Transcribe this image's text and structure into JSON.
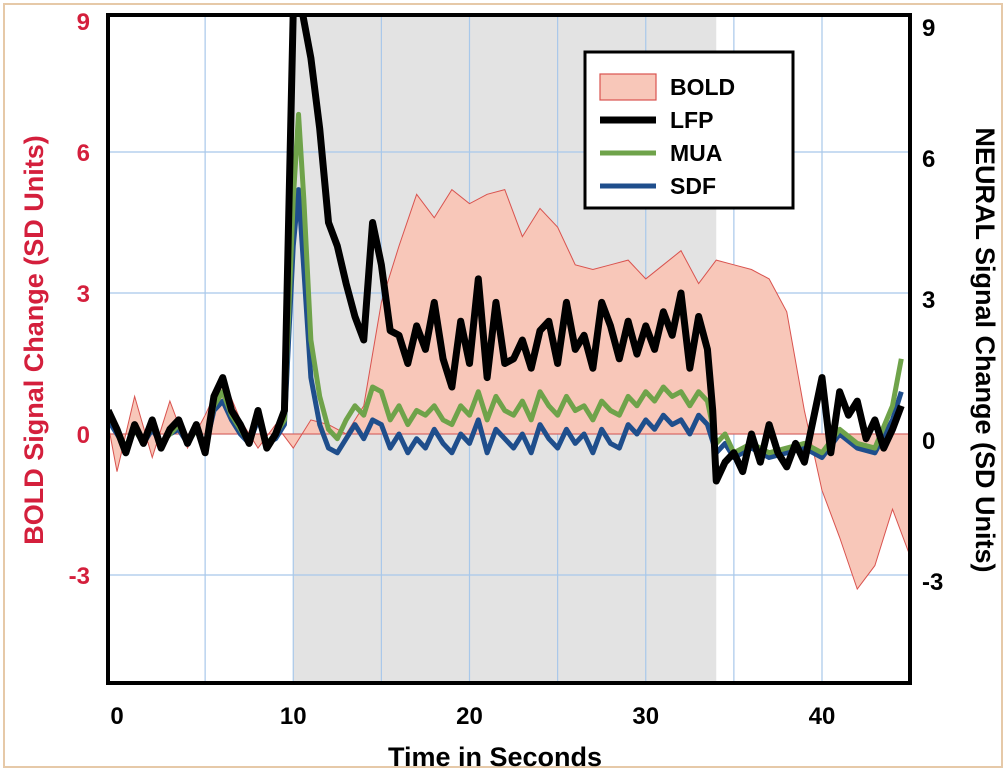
{
  "chart_data": {
    "type": "line",
    "title": "",
    "xlabel": "Time in Seconds",
    "ylabel_left": "BOLD Signal Change (SD Units)",
    "ylabel_right": "NEURAL Signal Change (SD Units)",
    "xlim": [
      -1,
      45
    ],
    "ylim": [
      -5.5,
      9
    ],
    "x_ticks": [
      0,
      10,
      20,
      30,
      40
    ],
    "x_tick_labels": [
      "0",
      "10",
      "20",
      "30",
      "40"
    ],
    "y_ticks": [
      -3,
      0,
      3,
      6,
      9
    ],
    "y_tick_labels_left": [
      "-3",
      "0",
      "3",
      "6",
      "9"
    ],
    "y_tick_labels_right": [
      "-3",
      "0",
      "3",
      "6",
      "9"
    ],
    "grid": true,
    "stimulus_period": [
      10,
      34
    ],
    "legend_position": "top-right",
    "colors": {
      "left_axis": "#d41f3c",
      "bold_fill": "#f8c7b9",
      "bold_edge": "#d9534f",
      "lfp": "#000000",
      "mua": "#6fa34a",
      "sdf": "#1f4e8c",
      "stim_shade": "#e3e3e3",
      "grid": "#a8c8ea"
    },
    "series": [
      {
        "name": "BOLD",
        "style": "filled-area",
        "x": [
          -0.5,
          0,
          1,
          2,
          3,
          4,
          5,
          6,
          7,
          8,
          9,
          10,
          11,
          12,
          13,
          14,
          15,
          16,
          17,
          18,
          19,
          20,
          21,
          22,
          23,
          24,
          25,
          26,
          27,
          28,
          29,
          30,
          31,
          32,
          33,
          34,
          35,
          36,
          37,
          38,
          39,
          40,
          41,
          42,
          43,
          44,
          45
        ],
        "y": [
          0.2,
          -0.8,
          0.8,
          -0.5,
          0.7,
          -0.3,
          0.4,
          1.2,
          0.3,
          -0.3,
          0.2,
          -0.3,
          0.3,
          0.2,
          0.0,
          0.6,
          2.8,
          4.0,
          5.1,
          4.6,
          5.2,
          4.9,
          5.1,
          5.2,
          4.2,
          4.8,
          4.4,
          3.6,
          3.5,
          3.6,
          3.7,
          3.3,
          3.6,
          3.9,
          3.2,
          3.7,
          3.6,
          3.5,
          3.3,
          2.6,
          0.5,
          -1.2,
          -2.2,
          -3.3,
          -2.8,
          -1.6,
          -2.6
        ]
      },
      {
        "name": "LFP",
        "x": [
          -0.5,
          0,
          0.5,
          1,
          1.5,
          2,
          2.5,
          3,
          3.5,
          4,
          4.5,
          5,
          5.5,
          6,
          6.5,
          7,
          7.5,
          8,
          8.5,
          9,
          9.5,
          10,
          10.2,
          10.5,
          11,
          11.5,
          12,
          12.5,
          13,
          13.5,
          14,
          14.5,
          15,
          15.5,
          16,
          16.5,
          17,
          17.5,
          18,
          18.5,
          19,
          19.5,
          20,
          20.5,
          21,
          21.5,
          22,
          22.5,
          23,
          23.5,
          24,
          24.5,
          25,
          25.5,
          26,
          26.5,
          27,
          27.5,
          28,
          28.5,
          29,
          29.5,
          30,
          30.5,
          31,
          31.5,
          32,
          32.5,
          33,
          33.5,
          33.8,
          34,
          34.5,
          35,
          35.5,
          36,
          36.5,
          37,
          37.5,
          38,
          38.5,
          39,
          39.5,
          40,
          40.5,
          41,
          41.5,
          42,
          42.5,
          43,
          43.5,
          44,
          44.5
        ],
        "y": [
          0.5,
          0.1,
          -0.4,
          0.2,
          -0.2,
          0.3,
          -0.3,
          0.1,
          0.3,
          -0.2,
          0.2,
          -0.4,
          0.8,
          1.2,
          0.5,
          0.2,
          -0.2,
          0.5,
          -0.3,
          0.0,
          0.5,
          9,
          9,
          9,
          8.0,
          6.5,
          4.5,
          4.0,
          3.2,
          2.5,
          2.0,
          4.5,
          3.6,
          2.2,
          2.1,
          1.5,
          2.3,
          1.8,
          2.8,
          1.6,
          1.0,
          2.4,
          1.5,
          3.3,
          1.2,
          2.8,
          1.5,
          1.6,
          2.0,
          1.4,
          2.2,
          2.4,
          1.5,
          2.8,
          1.8,
          2.1,
          1.4,
          2.8,
          2.3,
          1.6,
          2.4,
          1.7,
          2.3,
          1.8,
          2.6,
          2.1,
          3.0,
          1.4,
          2.5,
          1.8,
          0.5,
          -1.0,
          -0.6,
          -0.4,
          -0.8,
          0.0,
          -0.6,
          0.2,
          -0.4,
          -0.7,
          -0.2,
          -0.6,
          0.3,
          1.2,
          -0.4,
          0.9,
          0.4,
          0.7,
          -0.1,
          0.3,
          -0.3,
          0.1,
          0.6
        ]
      },
      {
        "name": "MUA",
        "x": [
          -0.5,
          0,
          0.5,
          1,
          1.5,
          2,
          2.5,
          3,
          3.5,
          4,
          4.5,
          5,
          5.5,
          6,
          6.5,
          7,
          7.5,
          8,
          8.5,
          9,
          9.5,
          10,
          10.3,
          10.6,
          11,
          11.5,
          12,
          12.5,
          13,
          13.5,
          14,
          14.5,
          15,
          15.5,
          16,
          16.5,
          17,
          17.5,
          18,
          18.5,
          19,
          19.5,
          20,
          20.5,
          21,
          21.5,
          22,
          22.5,
          23,
          23.5,
          24,
          24.5,
          25,
          25.5,
          26,
          26.5,
          27,
          27.5,
          28,
          28.5,
          29,
          29.5,
          30,
          30.5,
          31,
          31.5,
          32,
          32.5,
          33,
          33.5,
          34,
          34.5,
          35,
          36,
          37,
          38,
          39,
          40,
          41,
          42,
          43,
          44,
          44.5
        ],
        "y": [
          0.4,
          0.1,
          -0.3,
          0.1,
          -0.2,
          0.2,
          -0.2,
          0.0,
          0.2,
          -0.2,
          0.1,
          -0.3,
          0.6,
          0.9,
          0.4,
          0.1,
          -0.2,
          0.4,
          -0.2,
          0.0,
          0.3,
          5.0,
          6.8,
          5.0,
          2.0,
          0.8,
          0.1,
          -0.1,
          0.3,
          0.6,
          0.4,
          1.0,
          0.9,
          0.3,
          0.6,
          0.2,
          0.5,
          0.4,
          0.6,
          0.3,
          0.2,
          0.6,
          0.4,
          0.9,
          0.3,
          0.8,
          0.5,
          0.4,
          0.7,
          0.3,
          0.9,
          0.6,
          0.4,
          0.8,
          0.5,
          0.6,
          0.3,
          0.7,
          0.5,
          0.4,
          0.8,
          0.6,
          0.9,
          0.7,
          1.0,
          0.8,
          0.9,
          0.6,
          0.9,
          0.7,
          -0.2,
          0.0,
          -0.4,
          -0.2,
          -0.4,
          -0.3,
          -0.2,
          -0.4,
          0.1,
          -0.2,
          -0.3,
          0.6,
          1.6
        ]
      },
      {
        "name": "SDF",
        "x": [
          -0.5,
          0,
          0.5,
          1,
          1.5,
          2,
          2.5,
          3,
          3.5,
          4,
          4.5,
          5,
          5.5,
          6,
          6.5,
          7,
          7.5,
          8,
          8.5,
          9,
          9.5,
          10,
          10.3,
          10.6,
          11,
          11.5,
          12,
          12.5,
          13,
          13.5,
          14,
          14.5,
          15,
          15.5,
          16,
          16.5,
          17,
          17.5,
          18,
          18.5,
          19,
          19.5,
          20,
          20.5,
          21,
          21.5,
          22,
          22.5,
          23,
          23.5,
          24,
          24.5,
          25,
          25.5,
          26,
          26.5,
          27,
          27.5,
          28,
          28.5,
          29,
          29.5,
          30,
          30.5,
          31,
          31.5,
          32,
          32.5,
          33,
          33.5,
          34,
          34.5,
          35,
          36,
          37,
          38,
          39,
          40,
          41,
          42,
          43,
          44,
          44.5
        ],
        "y": [
          0.3,
          0.0,
          -0.3,
          0.1,
          -0.2,
          0.1,
          -0.2,
          0.0,
          0.1,
          -0.2,
          0.1,
          -0.3,
          0.5,
          0.7,
          0.3,
          0.0,
          -0.2,
          0.3,
          -0.2,
          -0.1,
          0.2,
          4.0,
          5.2,
          3.5,
          1.2,
          0.2,
          -0.3,
          -0.4,
          -0.1,
          0.2,
          -0.1,
          0.3,
          0.2,
          -0.3,
          0.0,
          -0.4,
          -0.1,
          -0.3,
          0.1,
          -0.2,
          -0.4,
          0.0,
          -0.2,
          0.3,
          -0.4,
          0.1,
          -0.1,
          -0.3,
          0.0,
          -0.4,
          0.2,
          -0.1,
          -0.3,
          0.1,
          -0.2,
          0.0,
          -0.4,
          0.1,
          -0.2,
          -0.3,
          0.2,
          0.0,
          0.3,
          0.1,
          0.4,
          0.2,
          0.3,
          0.0,
          0.4,
          0.2,
          -0.4,
          -0.2,
          -0.5,
          -0.3,
          -0.5,
          -0.4,
          -0.3,
          -0.5,
          0.0,
          -0.3,
          -0.4,
          0.3,
          0.9
        ]
      }
    ]
  }
}
